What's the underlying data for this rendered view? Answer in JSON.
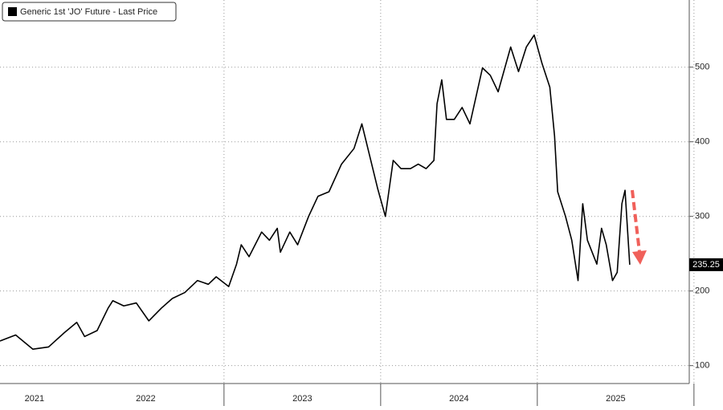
{
  "chart_data": {
    "type": "line",
    "series": [
      {
        "name": "Generic 1st 'JO' Future - Last Price",
        "color": "#000000",
        "values": [
          133,
          141,
          122,
          125,
          144,
          158,
          139,
          147,
          177,
          187,
          180,
          184,
          160,
          177,
          190,
          198,
          214,
          209,
          219,
          206,
          236,
          262,
          246,
          279,
          268,
          284,
          252,
          279,
          262,
          300,
          327,
          333,
          370,
          391,
          424,
          381,
          338,
          300,
          375,
          364,
          364,
          370,
          364,
          375,
          451,
          483,
          430,
          430,
          446,
          424,
          499,
          489,
          467,
          527,
          494,
          527,
          543,
          505,
          473,
          408,
          333,
          300,
          268,
          214,
          317,
          268,
          236,
          284,
          262,
          214,
          225,
          317,
          335,
          235.25
        ]
      }
    ],
    "x": [
      2021.57,
      2021.67,
      2021.78,
      2021.88,
      2021.98,
      2022.06,
      2022.11,
      2022.19,
      2022.26,
      2022.29,
      2022.36,
      2022.44,
      2022.52,
      2022.6,
      2022.67,
      2022.75,
      2022.83,
      2022.9,
      2022.95,
      2023.03,
      2023.08,
      2023.11,
      2023.16,
      2023.24,
      2023.29,
      2023.34,
      2023.36,
      2023.42,
      2023.47,
      2023.54,
      2023.6,
      2023.67,
      2023.75,
      2023.83,
      2023.88,
      2023.93,
      2023.98,
      2024.03,
      2024.08,
      2024.13,
      2024.19,
      2024.24,
      2024.29,
      2024.34,
      2024.36,
      2024.39,
      2024.42,
      2024.47,
      2024.52,
      2024.57,
      2024.65,
      2024.7,
      2024.75,
      2024.83,
      2024.88,
      2024.93,
      2024.98,
      2025.03,
      2025.08,
      2025.11,
      2025.13,
      2025.18,
      2025.22,
      2025.26,
      2025.29,
      2025.32,
      2025.38,
      2025.41,
      2025.44,
      2025.48,
      2025.51,
      2025.54,
      2025.56,
      2025.59
    ],
    "xlim": [
      2021.57,
      2025.97
    ],
    "xticks": [
      {
        "value": 2021.79,
        "label": "2021"
      },
      {
        "value": 2022.5,
        "label": "2022"
      },
      {
        "value": 2023.5,
        "label": "2023"
      },
      {
        "value": 2024.5,
        "label": "2024"
      },
      {
        "value": 2025.5,
        "label": "2025"
      }
    ],
    "ylim": [
      76,
      590
    ],
    "yticks": [
      100,
      200,
      300,
      400,
      500
    ],
    "grid": true
  }
}
